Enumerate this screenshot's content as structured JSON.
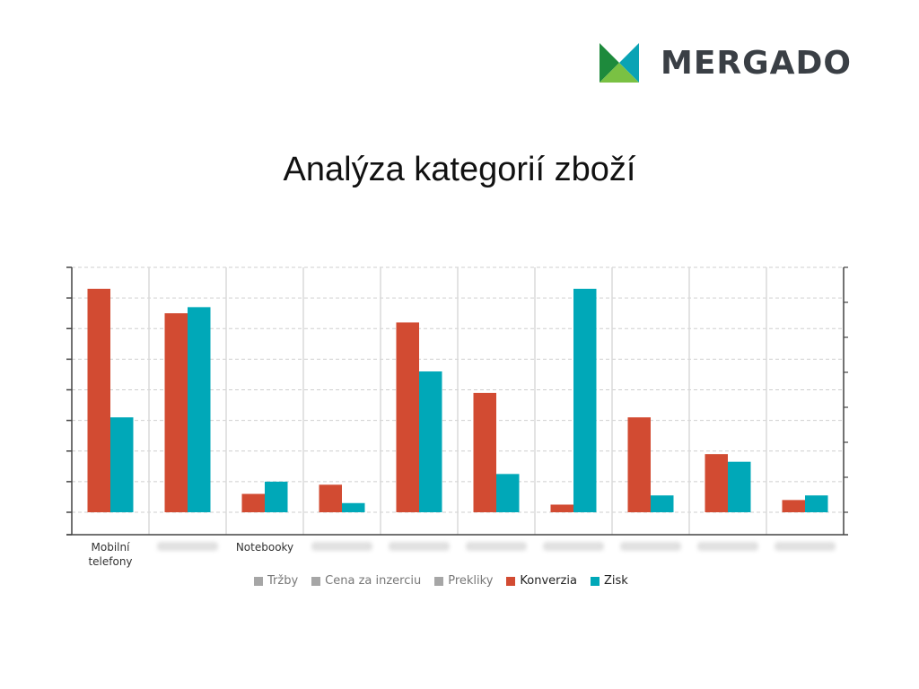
{
  "brand": {
    "name": "MERGADO"
  },
  "title": "Analýza kategorií zboží",
  "colors": {
    "konverzia": "#d24b32",
    "zisk": "#00a8b8",
    "inactive": "#a6a6a6",
    "logo_dark_green": "#1e8a3c",
    "logo_light_green": "#7ac143",
    "logo_teal": "#0aa3b5"
  },
  "chart_data": {
    "type": "bar",
    "categories": [
      "Mobilní telefony",
      "",
      "Notebooky",
      "",
      "",
      "",
      "",
      "",
      "",
      ""
    ],
    "series": [
      {
        "name": "Tržby",
        "values": null,
        "visible": false
      },
      {
        "name": "Cena za inzerciu",
        "values": null,
        "visible": false
      },
      {
        "name": "Prekliky",
        "values": null,
        "visible": false
      },
      {
        "name": "Konverzia",
        "values": [
          7.3,
          6.5,
          0.6,
          0.9,
          6.2,
          3.9,
          0.25,
          3.1,
          1.9,
          0.4
        ],
        "visible": true
      },
      {
        "name": "Zisk",
        "values": [
          3.1,
          6.7,
          1.0,
          0.3,
          4.6,
          1.25,
          7.3,
          0.55,
          1.65,
          0.55
        ],
        "visible": true
      }
    ],
    "ylim": [
      0,
      8
    ],
    "grid": true,
    "legend_position": "bottom",
    "blurred_category_labels": true
  }
}
